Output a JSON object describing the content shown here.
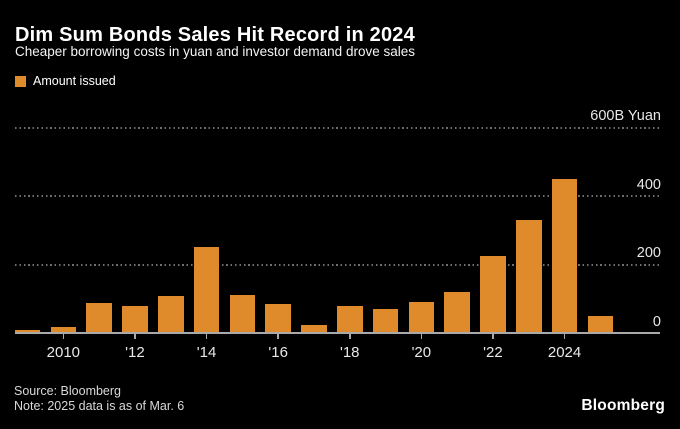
{
  "header": {
    "title": "Dim Sum Bonds Sales Hit Record in 2024",
    "subtitle": "Cheaper borrowing costs in yuan and investor demand drove sales"
  },
  "legend": {
    "label": "Amount issued",
    "swatch_color": "#E08B2B"
  },
  "chart_data": {
    "type": "bar",
    "title": "Dim Sum Bonds Sales Hit Record in 2024",
    "subtitle": "Cheaper borrowing costs in yuan and investor demand drove sales",
    "series_name": "Amount issued",
    "unit": "billion yuan",
    "categories": [
      "2009",
      "2010",
      "2011",
      "2012",
      "2013",
      "2014",
      "2015",
      "2016",
      "2017",
      "2018",
      "2019",
      "2020",
      "2021",
      "2022",
      "2023",
      "2024",
      "2025"
    ],
    "values": [
      8,
      18,
      88,
      80,
      108,
      250,
      112,
      84,
      24,
      78,
      70,
      90,
      120,
      224,
      330,
      450,
      50
    ],
    "ylim": [
      0,
      600
    ],
    "yticks": [
      {
        "value": 600,
        "label": "600B Yuan"
      },
      {
        "value": 400,
        "label": "400"
      },
      {
        "value": 200,
        "label": "200"
      },
      {
        "value": 0,
        "label": "0"
      }
    ],
    "xticks": [
      {
        "index": 1,
        "label": "2010"
      },
      {
        "index": 3,
        "label": "'12"
      },
      {
        "index": 5,
        "label": "'14"
      },
      {
        "index": 7,
        "label": "'16"
      },
      {
        "index": 9,
        "label": "'18"
      },
      {
        "index": 11,
        "label": "'20"
      },
      {
        "index": 13,
        "label": "'22"
      },
      {
        "index": 15,
        "label": "2024"
      }
    ],
    "grid": "horizontal-dotted",
    "legend_position": "top-left",
    "bar_color": "#E08B2B"
  },
  "footer": {
    "source": "Source: Bloomberg",
    "note": "Note: 2025 data is as of Mar. 6",
    "logo": "Bloomberg"
  },
  "colors": {
    "background": "#000000",
    "bar": "#E08B2B",
    "title_text": "#FFFFFF",
    "axis_text": "#E8E8E8",
    "gridline": "#6E6E6E",
    "axis_line": "#A9A9A9",
    "footer_text": "#D9D9D9"
  }
}
